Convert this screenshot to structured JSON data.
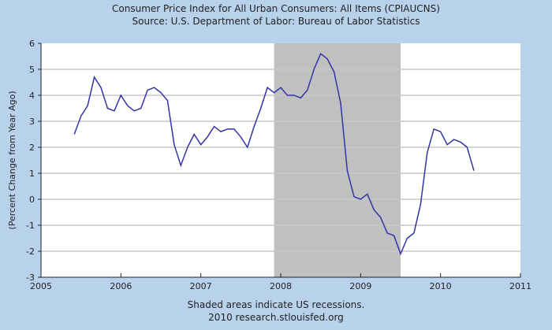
{
  "chart_data": {
    "type": "line",
    "title": "Consumer Price Index for All Urban Consumers: All Items (CPIAUCNS)",
    "subtitle": "Source: U.S. Department of Labor: Bureau of Labor Statistics",
    "ylabel": "(Percent Change from Year Ago)",
    "xlabel": "",
    "footnote": "Shaded areas indicate US recessions.",
    "credit": "2010 research.stlouisfed.org",
    "xlim": [
      2005,
      2011
    ],
    "ylim": [
      -3,
      6
    ],
    "xticks": [
      "2005",
      "2006",
      "2007",
      "2008",
      "2009",
      "2010",
      "2011"
    ],
    "yticks": [
      "-3",
      "-2",
      "-1",
      "0",
      "1",
      "2",
      "3",
      "4",
      "5",
      "6"
    ],
    "grid": true,
    "line_color": "#3333aa",
    "recession_color": "#c0c0c0",
    "recessions": [
      [
        2007.917,
        2009.5
      ]
    ],
    "start": [
      2005,
      6
    ],
    "series": [
      {
        "name": "CPIAUCNS % change from year ago",
        "values": [
          2.5,
          3.2,
          3.6,
          4.7,
          4.3,
          3.5,
          3.4,
          4.0,
          3.6,
          3.4,
          3.5,
          4.2,
          4.3,
          4.1,
          3.8,
          2.1,
          1.3,
          2.0,
          2.5,
          2.1,
          2.4,
          2.8,
          2.6,
          2.7,
          2.7,
          2.4,
          2.0,
          2.8,
          3.5,
          4.3,
          4.1,
          4.3,
          4.0,
          4.0,
          3.9,
          4.2,
          5.0,
          5.6,
          5.4,
          4.9,
          3.7,
          1.1,
          0.1,
          0.0,
          0.2,
          -0.4,
          -0.7,
          -1.3,
          -1.4,
          -2.1,
          -1.5,
          -1.3,
          -0.2,
          1.8,
          2.7,
          2.6,
          2.1,
          2.3,
          2.2,
          2.0,
          1.1
        ]
      }
    ]
  }
}
